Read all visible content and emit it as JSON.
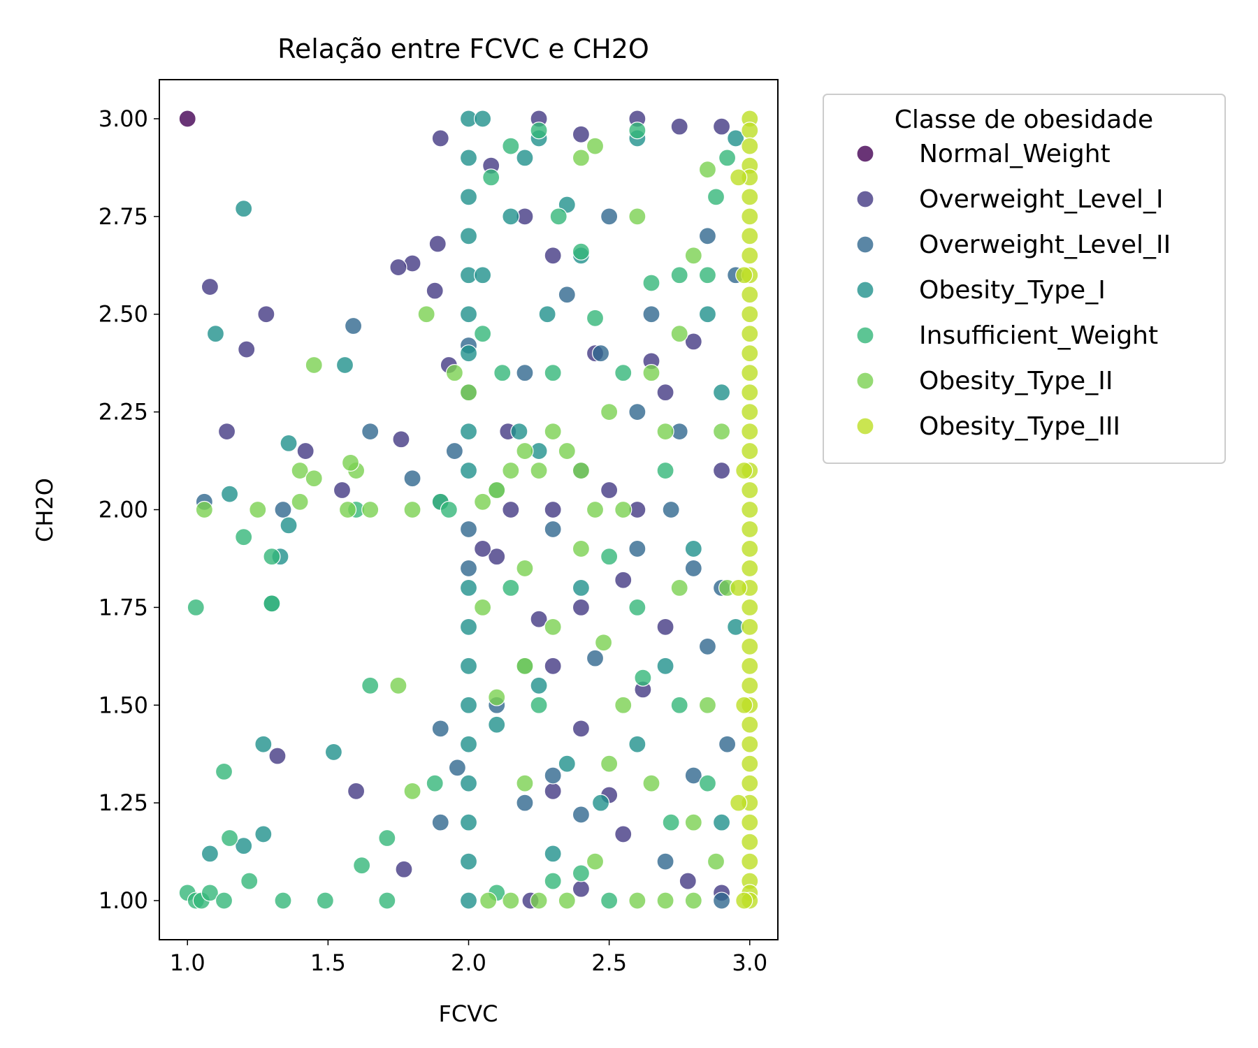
{
  "chart_data": {
    "type": "scatter",
    "title": "Relação entre FCVC e CH2O",
    "xlabel": "FCVC",
    "ylabel": "CH2O",
    "xlim": [
      0.9,
      3.1
    ],
    "ylim": [
      0.9,
      3.1
    ],
    "x_ticks": [
      "1.0",
      "1.5",
      "2.0",
      "2.5",
      "3.0"
    ],
    "y_ticks": [
      "1.00",
      "1.25",
      "1.50",
      "1.75",
      "2.00",
      "2.25",
      "2.50",
      "2.75",
      "3.00"
    ],
    "grid": false,
    "legend": {
      "title": "Classe de obesidade",
      "position": "outside-right-top"
    },
    "series": [
      {
        "name": "Normal_Weight",
        "color": "#440154",
        "points": [
          [
            1.0,
            3.0
          ]
        ]
      },
      {
        "name": "Overweight_Level_I",
        "color": "#443983",
        "points": [
          [
            1.08,
            2.57
          ],
          [
            1.28,
            2.5
          ],
          [
            1.21,
            2.41
          ],
          [
            1.14,
            2.2
          ],
          [
            1.32,
            1.37
          ],
          [
            1.6,
            1.28
          ],
          [
            1.77,
            1.08
          ],
          [
            1.76,
            2.18
          ],
          [
            1.9,
            2.95
          ],
          [
            1.89,
            2.68
          ],
          [
            1.8,
            2.63
          ],
          [
            1.88,
            2.56
          ],
          [
            1.75,
            2.62
          ],
          [
            1.93,
            2.37
          ],
          [
            2.25,
            3.0
          ],
          [
            2.4,
            2.96
          ],
          [
            2.6,
            3.0
          ],
          [
            2.75,
            2.98
          ],
          [
            2.9,
            2.98
          ],
          [
            2.08,
            2.88
          ],
          [
            2.2,
            2.75
          ],
          [
            2.3,
            2.65
          ],
          [
            2.45,
            2.4
          ],
          [
            2.65,
            2.38
          ],
          [
            2.8,
            2.43
          ],
          [
            2.9,
            2.1
          ],
          [
            2.7,
            2.3
          ],
          [
            2.5,
            2.05
          ],
          [
            2.3,
            2.0
          ],
          [
            2.15,
            2.0
          ],
          [
            2.6,
            2.0
          ],
          [
            2.1,
            1.88
          ],
          [
            2.25,
            1.72
          ],
          [
            2.4,
            1.75
          ],
          [
            2.55,
            1.82
          ],
          [
            2.7,
            1.7
          ],
          [
            2.3,
            1.6
          ],
          [
            2.62,
            1.54
          ],
          [
            2.4,
            1.44
          ],
          [
            2.5,
            1.27
          ],
          [
            2.3,
            1.28
          ],
          [
            2.55,
            1.17
          ],
          [
            2.78,
            1.05
          ],
          [
            2.9,
            1.02
          ],
          [
            2.22,
            1.0
          ],
          [
            2.4,
            1.03
          ],
          [
            2.05,
            1.9
          ],
          [
            2.14,
            2.2
          ],
          [
            1.42,
            2.15
          ],
          [
            1.55,
            2.05
          ]
        ]
      },
      {
        "name": "Overweight_Level_II",
        "color": "#31688e",
        "points": [
          [
            1.59,
            2.47
          ],
          [
            1.65,
            2.2
          ],
          [
            1.8,
            2.08
          ],
          [
            1.06,
            2.02
          ],
          [
            1.34,
            2.0
          ],
          [
            1.9,
            2.02
          ],
          [
            1.95,
            2.15
          ],
          [
            1.96,
            1.34
          ],
          [
            1.9,
            1.44
          ],
          [
            1.9,
            1.2
          ],
          [
            2.0,
            2.3
          ],
          [
            2.0,
            2.42
          ],
          [
            2.0,
            1.95
          ],
          [
            2.0,
            1.85
          ],
          [
            2.2,
            2.35
          ],
          [
            2.35,
            2.55
          ],
          [
            2.47,
            2.4
          ],
          [
            2.6,
            2.25
          ],
          [
            2.75,
            2.2
          ],
          [
            2.85,
            2.7
          ],
          [
            2.95,
            2.6
          ],
          [
            2.4,
            2.1
          ],
          [
            2.3,
            1.95
          ],
          [
            2.72,
            2.0
          ],
          [
            2.8,
            1.85
          ],
          [
            2.9,
            1.8
          ],
          [
            2.6,
            1.9
          ],
          [
            2.45,
            1.62
          ],
          [
            2.85,
            1.65
          ],
          [
            2.92,
            1.4
          ],
          [
            2.3,
            1.32
          ],
          [
            2.4,
            1.22
          ],
          [
            2.8,
            1.32
          ],
          [
            2.7,
            1.1
          ],
          [
            2.1,
            1.5
          ],
          [
            2.2,
            1.25
          ],
          [
            2.9,
            1.0
          ],
          [
            2.65,
            2.5
          ],
          [
            2.5,
            2.75
          ]
        ]
      },
      {
        "name": "Obesity_Type_I",
        "color": "#21918c",
        "points": [
          [
            1.2,
            2.77
          ],
          [
            1.1,
            2.45
          ],
          [
            1.56,
            2.37
          ],
          [
            1.36,
            2.17
          ],
          [
            1.15,
            2.04
          ],
          [
            1.33,
            1.88
          ],
          [
            1.36,
            1.96
          ],
          [
            1.3,
            1.76
          ],
          [
            1.27,
            1.4
          ],
          [
            1.52,
            1.38
          ],
          [
            1.2,
            1.14
          ],
          [
            1.27,
            1.17
          ],
          [
            1.08,
            1.12
          ],
          [
            2.0,
            3.0
          ],
          [
            2.0,
            2.9
          ],
          [
            2.0,
            2.8
          ],
          [
            2.0,
            2.7
          ],
          [
            2.0,
            2.6
          ],
          [
            2.0,
            2.5
          ],
          [
            2.0,
            2.4
          ],
          [
            2.0,
            2.2
          ],
          [
            2.0,
            2.1
          ],
          [
            2.0,
            1.8
          ],
          [
            2.0,
            1.7
          ],
          [
            2.0,
            1.6
          ],
          [
            2.0,
            1.5
          ],
          [
            2.0,
            1.4
          ],
          [
            2.0,
            1.3
          ],
          [
            2.0,
            1.2
          ],
          [
            2.0,
            1.1
          ],
          [
            2.0,
            1.0
          ],
          [
            2.05,
            3.0
          ],
          [
            2.2,
            2.9
          ],
          [
            2.25,
            2.95
          ],
          [
            2.35,
            2.78
          ],
          [
            2.4,
            2.65
          ],
          [
            2.05,
            2.6
          ],
          [
            2.15,
            2.75
          ],
          [
            2.28,
            2.5
          ],
          [
            2.18,
            2.2
          ],
          [
            2.25,
            2.15
          ],
          [
            2.1,
            2.05
          ],
          [
            2.4,
            1.8
          ],
          [
            2.2,
            1.6
          ],
          [
            2.1,
            1.45
          ],
          [
            2.25,
            1.55
          ],
          [
            2.35,
            1.35
          ],
          [
            2.3,
            1.12
          ],
          [
            2.47,
            1.25
          ],
          [
            2.6,
            1.4
          ],
          [
            2.7,
            1.6
          ],
          [
            2.8,
            1.9
          ],
          [
            2.9,
            2.3
          ],
          [
            2.95,
            2.95
          ],
          [
            2.6,
            2.95
          ],
          [
            2.85,
            2.5
          ],
          [
            2.95,
            1.7
          ],
          [
            2.9,
            1.2
          ]
        ]
      },
      {
        "name": "Insufficient_Weight",
        "color": "#35b779",
        "points": [
          [
            1.0,
            1.02
          ],
          [
            1.03,
            1.0
          ],
          [
            1.05,
            1.0
          ],
          [
            1.08,
            1.02
          ],
          [
            1.13,
            1.0
          ],
          [
            1.22,
            1.05
          ],
          [
            1.34,
            1.0
          ],
          [
            1.49,
            1.0
          ],
          [
            1.62,
            1.09
          ],
          [
            1.71,
            1.0
          ],
          [
            1.71,
            1.16
          ],
          [
            1.65,
            1.55
          ],
          [
            1.2,
            1.93
          ],
          [
            1.03,
            1.75
          ],
          [
            1.3,
            1.76
          ],
          [
            1.13,
            1.33
          ],
          [
            1.15,
            1.16
          ],
          [
            1.3,
            1.88
          ],
          [
            1.6,
            2.0
          ],
          [
            1.88,
            1.3
          ],
          [
            1.9,
            2.02
          ],
          [
            1.93,
            2.0
          ],
          [
            2.08,
            2.85
          ],
          [
            2.15,
            2.93
          ],
          [
            2.05,
            2.45
          ],
          [
            2.12,
            2.35
          ],
          [
            2.25,
            2.97
          ],
          [
            2.32,
            2.75
          ],
          [
            2.4,
            2.66
          ],
          [
            2.45,
            2.49
          ],
          [
            2.6,
            2.97
          ],
          [
            2.65,
            2.58
          ],
          [
            2.75,
            2.6
          ],
          [
            2.88,
            2.8
          ],
          [
            2.92,
            2.9
          ],
          [
            2.85,
            2.6
          ],
          [
            2.55,
            2.35
          ],
          [
            2.7,
            2.1
          ],
          [
            2.5,
            1.88
          ],
          [
            2.6,
            1.75
          ],
          [
            2.75,
            1.5
          ],
          [
            2.62,
            1.57
          ],
          [
            2.85,
            1.3
          ],
          [
            2.72,
            1.2
          ],
          [
            2.5,
            1.0
          ],
          [
            2.4,
            1.07
          ],
          [
            2.3,
            1.05
          ],
          [
            2.1,
            1.02
          ],
          [
            2.25,
            1.5
          ],
          [
            2.15,
            1.8
          ],
          [
            2.3,
            2.35
          ]
        ]
      },
      {
        "name": "Obesity_Type_II",
        "color": "#7ad151",
        "points": [
          [
            1.45,
            2.37
          ],
          [
            1.4,
            2.1
          ],
          [
            1.45,
            2.08
          ],
          [
            1.6,
            2.1
          ],
          [
            1.65,
            2.0
          ],
          [
            1.4,
            2.02
          ],
          [
            1.25,
            2.0
          ],
          [
            1.06,
            2.0
          ],
          [
            1.58,
            2.12
          ],
          [
            1.57,
            2.0
          ],
          [
            1.8,
            2.0
          ],
          [
            1.85,
            2.5
          ],
          [
            1.75,
            1.55
          ],
          [
            1.8,
            1.28
          ],
          [
            1.95,
            2.35
          ],
          [
            2.0,
            2.3
          ],
          [
            2.05,
            2.02
          ],
          [
            2.1,
            2.05
          ],
          [
            2.15,
            2.1
          ],
          [
            2.2,
            2.15
          ],
          [
            2.25,
            2.1
          ],
          [
            2.3,
            2.2
          ],
          [
            2.35,
            2.15
          ],
          [
            2.4,
            2.1
          ],
          [
            2.45,
            2.0
          ],
          [
            2.2,
            1.85
          ],
          [
            2.3,
            1.7
          ],
          [
            2.4,
            1.9
          ],
          [
            2.5,
            2.25
          ],
          [
            2.55,
            2.0
          ],
          [
            2.65,
            2.35
          ],
          [
            2.75,
            2.45
          ],
          [
            2.8,
            2.65
          ],
          [
            2.85,
            2.87
          ],
          [
            2.7,
            2.2
          ],
          [
            2.75,
            1.8
          ],
          [
            2.85,
            1.5
          ],
          [
            2.8,
            1.2
          ],
          [
            2.65,
            1.3
          ],
          [
            2.6,
            1.0
          ],
          [
            2.7,
            1.0
          ],
          [
            2.8,
            1.0
          ],
          [
            2.5,
            1.35
          ],
          [
            2.45,
            1.1
          ],
          [
            2.4,
            2.9
          ],
          [
            2.45,
            2.93
          ],
          [
            2.2,
            1.6
          ],
          [
            2.2,
            1.3
          ],
          [
            2.1,
            1.52
          ],
          [
            2.05,
            1.75
          ],
          [
            2.07,
            1.0
          ],
          [
            2.15,
            1.0
          ],
          [
            2.25,
            1.0
          ],
          [
            2.35,
            1.0
          ],
          [
            2.48,
            1.66
          ],
          [
            2.55,
            1.5
          ],
          [
            2.9,
            2.2
          ],
          [
            2.92,
            1.8
          ],
          [
            2.88,
            1.1
          ],
          [
            2.6,
            2.75
          ]
        ]
      },
      {
        "name": "Obesity_Type_III",
        "color": "#bddf26",
        "points": [
          [
            3.0,
            3.0
          ],
          [
            3.0,
            2.97
          ],
          [
            3.0,
            2.93
          ],
          [
            3.0,
            2.88
          ],
          [
            3.0,
            2.85
          ],
          [
            3.0,
            2.8
          ],
          [
            3.0,
            2.75
          ],
          [
            3.0,
            2.7
          ],
          [
            3.0,
            2.65
          ],
          [
            3.0,
            2.6
          ],
          [
            3.0,
            2.55
          ],
          [
            3.0,
            2.5
          ],
          [
            3.0,
            2.45
          ],
          [
            3.0,
            2.4
          ],
          [
            3.0,
            2.35
          ],
          [
            3.0,
            2.3
          ],
          [
            3.0,
            2.25
          ],
          [
            3.0,
            2.2
          ],
          [
            3.0,
            2.15
          ],
          [
            3.0,
            2.1
          ],
          [
            3.0,
            2.05
          ],
          [
            3.0,
            2.0
          ],
          [
            3.0,
            1.95
          ],
          [
            3.0,
            1.9
          ],
          [
            3.0,
            1.85
          ],
          [
            3.0,
            1.8
          ],
          [
            3.0,
            1.75
          ],
          [
            3.0,
            1.7
          ],
          [
            3.0,
            1.65
          ],
          [
            3.0,
            1.6
          ],
          [
            3.0,
            1.55
          ],
          [
            3.0,
            1.5
          ],
          [
            3.0,
            1.45
          ],
          [
            3.0,
            1.4
          ],
          [
            3.0,
            1.35
          ],
          [
            3.0,
            1.3
          ],
          [
            3.0,
            1.25
          ],
          [
            3.0,
            1.2
          ],
          [
            3.0,
            1.15
          ],
          [
            3.0,
            1.1
          ],
          [
            3.0,
            1.05
          ],
          [
            3.0,
            1.02
          ],
          [
            3.0,
            1.0
          ],
          [
            2.98,
            2.6
          ],
          [
            2.98,
            2.1
          ],
          [
            2.98,
            1.5
          ],
          [
            2.98,
            1.0
          ],
          [
            2.96,
            2.85
          ],
          [
            2.96,
            1.8
          ],
          [
            2.96,
            1.25
          ]
        ]
      }
    ]
  }
}
